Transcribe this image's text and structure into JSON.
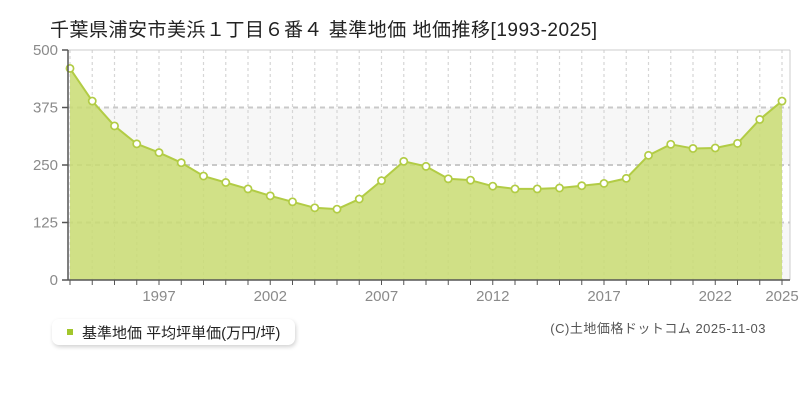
{
  "title": "千葉県浦安市美浜１丁目６番４ 基準地価 地価推移[1993-2025]",
  "legend": {
    "label": "基準地価 平均坪単価(万円/坪)",
    "marker_color": "#a2c62c"
  },
  "copyright": "(C)土地価格ドットコム 2025-11-03",
  "chart_data": {
    "type": "area",
    "title": "千葉県浦安市美浜１丁目６番４ 基準地価 地価推移[1993-2025]",
    "xlabel": "",
    "ylabel": "平均坪単価(万円/坪)",
    "x": [
      1993,
      1994,
      1995,
      1996,
      1997,
      1998,
      1999,
      2000,
      2001,
      2002,
      2003,
      2004,
      2005,
      2006,
      2007,
      2008,
      2009,
      2010,
      2011,
      2012,
      2013,
      2014,
      2015,
      2016,
      2017,
      2018,
      2019,
      2020,
      2021,
      2022,
      2023,
      2024,
      2025
    ],
    "series": [
      {
        "name": "基準地価 平均坪単価(万円/坪)",
        "values": [
          460,
          389,
          335,
          296,
          277,
          255,
          226,
          212,
          198,
          183,
          170,
          157,
          154,
          176,
          216,
          258,
          247,
          220,
          217,
          204,
          198,
          198,
          200,
          205,
          210,
          221,
          271,
          295,
          286,
          287,
          297,
          349,
          389
        ]
      }
    ],
    "ylim": [
      0,
      500
    ],
    "y_ticks": [
      0,
      125,
      250,
      375,
      500
    ],
    "x_tick_years": [
      1997,
      2002,
      2007,
      2012,
      2017,
      2022,
      2025
    ],
    "grid": true,
    "legend_position": "bottom-left",
    "colors": {
      "area_fill": "#c9dc72",
      "line": "#b2cc45",
      "marker_fill": "#ffffff",
      "marker_stroke": "#b2cc45",
      "band_light": "#ffffff",
      "band_shade": "#f7f7f7",
      "grid_v": "#d6d6d6",
      "grid_h": "#c9c9c9",
      "axis": "#555555",
      "tick_label": "#8a8a8a"
    }
  }
}
